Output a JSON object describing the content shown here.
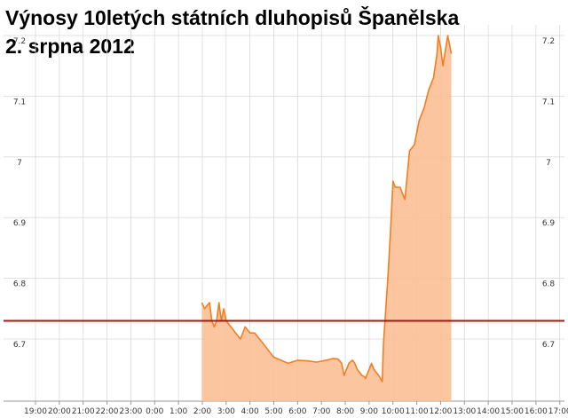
{
  "chart_data": {
    "type": "area",
    "title_lines": [
      "Výnosy 10letých státních dluhopisů Španělska",
      "2. srpna 2012"
    ],
    "x_ticks": [
      "19:00",
      "20:00",
      "21:00",
      "22:00",
      "23:00",
      "0:00",
      "1:00",
      "2:00",
      "3:00",
      "4:00",
      "5:00",
      "6:00",
      "7:00",
      "8:00",
      "9:00",
      "10:00",
      "11:00",
      "12:00",
      "13:00",
      "14:00",
      "15:00",
      "16:00",
      "17:00"
    ],
    "y_ticks": [
      "6.7",
      "6.8",
      "6.9",
      "7",
      "7.1",
      "7.2"
    ],
    "ylim": [
      6.62,
      7.22
    ],
    "reference_line": 6.73,
    "grid": true,
    "series": [
      {
        "x": [
          1.98,
          2.1,
          2.3,
          2.4,
          2.5,
          2.6,
          2.7,
          2.8,
          2.9,
          3.0,
          3.2,
          3.4,
          3.6,
          3.8,
          4.0,
          4.2,
          4.4,
          4.6,
          4.8,
          5.0,
          5.3,
          5.6,
          6.0,
          6.4,
          6.8,
          7.2,
          7.5,
          7.7,
          7.85,
          7.95,
          8.05,
          8.15,
          8.3,
          8.4,
          8.5,
          8.6,
          8.7,
          8.8,
          8.85,
          8.9,
          9.0,
          9.1,
          9.2,
          9.4,
          9.55,
          9.6,
          9.7,
          9.8,
          9.9,
          10.0,
          10.1,
          10.3,
          10.5,
          10.7,
          10.9,
          11.1,
          11.3,
          11.5,
          11.7,
          11.85,
          11.9,
          12.0,
          12.1,
          12.3,
          12.45
        ],
        "values": [
          6.76,
          6.75,
          6.76,
          6.73,
          6.72,
          6.73,
          6.76,
          6.73,
          6.75,
          6.73,
          6.72,
          6.71,
          6.7,
          6.72,
          6.71,
          6.71,
          6.7,
          6.69,
          6.68,
          6.67,
          6.665,
          6.66,
          6.665,
          6.664,
          6.662,
          6.665,
          6.668,
          6.667,
          6.66,
          6.64,
          6.65,
          6.66,
          6.665,
          6.66,
          6.65,
          6.645,
          6.64,
          6.638,
          6.635,
          6.64,
          6.65,
          6.66,
          6.65,
          6.64,
          6.63,
          6.69,
          6.75,
          6.81,
          6.88,
          6.96,
          6.95,
          6.95,
          6.93,
          7.01,
          7.02,
          7.06,
          7.08,
          7.11,
          7.13,
          7.17,
          7.2,
          7.18,
          7.15,
          7.2,
          7.17
        ]
      }
    ]
  }
}
